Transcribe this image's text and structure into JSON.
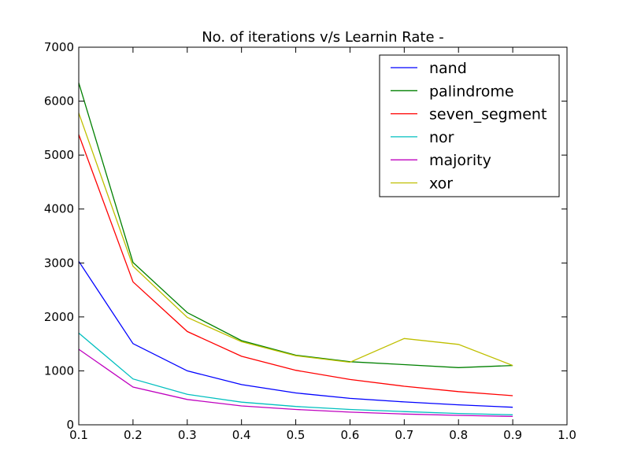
{
  "chart_data": {
    "type": "line",
    "title": "No. of iterations v/s Learnin Rate -",
    "xlabel": "",
    "ylabel": "",
    "xlim": [
      0.1,
      1.0
    ],
    "ylim": [
      0,
      7000
    ],
    "x_ticks": [
      "0.1",
      "0.2",
      "0.3",
      "0.4",
      "0.5",
      "0.6",
      "0.7",
      "0.8",
      "0.9",
      "1.0"
    ],
    "y_ticks": [
      "0",
      "1000",
      "2000",
      "3000",
      "4000",
      "5000",
      "6000",
      "7000"
    ],
    "grid": false,
    "legend_position": "top-right",
    "x": [
      0.1,
      0.2,
      0.3,
      0.4,
      0.5,
      0.6,
      0.7,
      0.8,
      0.9
    ],
    "series": [
      {
        "name": "nand",
        "color": "#0000ff",
        "values": [
          3030,
          1505,
          1000,
          745,
          590,
          490,
          425,
          370,
          325
        ]
      },
      {
        "name": "palindrome",
        "color": "#008000",
        "values": [
          6340,
          3010,
          2080,
          1560,
          1290,
          1170,
          1115,
          1060,
          1100
        ]
      },
      {
        "name": "seven_segment",
        "color": "#ff0000",
        "values": [
          5380,
          2650,
          1730,
          1270,
          1010,
          840,
          715,
          615,
          540
        ]
      },
      {
        "name": "nor",
        "color": "#00bfbf",
        "values": [
          1700,
          850,
          565,
          420,
          340,
          285,
          245,
          210,
          185
        ]
      },
      {
        "name": "majority",
        "color": "#bf00bf",
        "values": [
          1400,
          700,
          470,
          350,
          285,
          235,
          200,
          175,
          155
        ]
      },
      {
        "name": "xor",
        "color": "#bfbf00",
        "values": [
          5780,
          2940,
          1990,
          1540,
          1280,
          1160,
          1600,
          1490,
          1100
        ]
      }
    ]
  }
}
